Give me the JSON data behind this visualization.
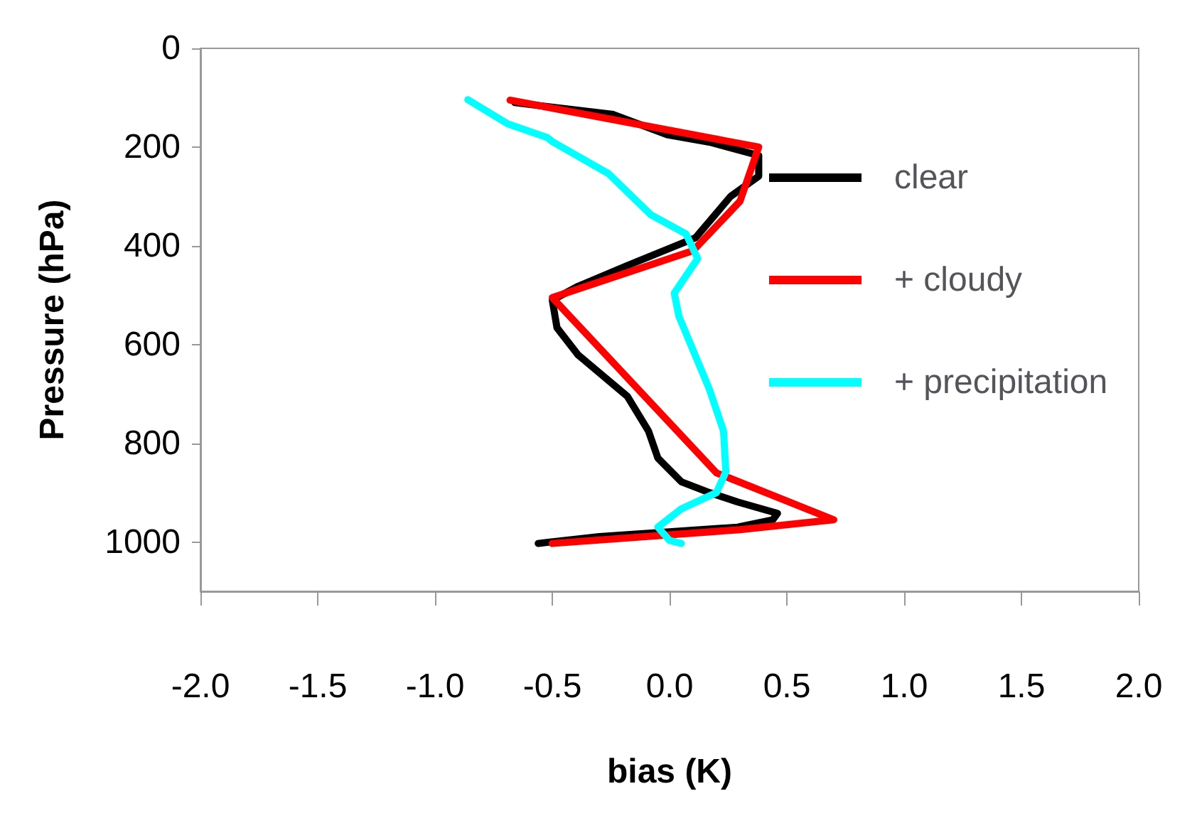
{
  "chart_data": {
    "type": "line",
    "xlabel": "bias (K)",
    "ylabel": "Pressure (hPa)",
    "xlim": [
      -2,
      2
    ],
    "xticks": [
      {
        "value": -2,
        "label": "-2.0"
      },
      {
        "value": -1.5,
        "label": "-1.5"
      },
      {
        "value": -1,
        "label": "-1.0"
      },
      {
        "value": -0.5,
        "label": "-0.5"
      },
      {
        "value": 0,
        "label": "0.0"
      },
      {
        "value": 0.5,
        "label": "0.5"
      },
      {
        "value": 1,
        "label": "1.0"
      },
      {
        "value": 1.5,
        "label": "1.5"
      },
      {
        "value": 2,
        "label": "2.0"
      }
    ],
    "ylim": [
      1100,
      0
    ],
    "yticks": [
      0,
      200,
      400,
      600,
      800,
      1000
    ],
    "grid": false,
    "legend": "right",
    "marker": "none",
    "line_style": "solid",
    "series": [
      {
        "name": "clear",
        "color": "#000000",
        "x": [
          -0.66,
          -0.24,
          -0.01,
          0.17,
          0.38,
          0.38,
          0.26,
          0.11,
          -0.18,
          -0.39,
          -0.5,
          -0.48,
          -0.39,
          -0.18,
          -0.09,
          -0.05,
          0.05,
          0.17,
          0.29,
          0.46,
          0.44,
          0.29,
          -0.3,
          -0.56
        ],
        "values": [
          110,
          134,
          175,
          190,
          217,
          259,
          300,
          384,
          440,
          482,
          510,
          566,
          621,
          705,
          775,
          830,
          878,
          900,
          919,
          942,
          955,
          970,
          989,
          1003
        ]
      },
      {
        "name": "+ cloudy",
        "color": "#ff0000",
        "x": [
          -0.68,
          0.38,
          0.3,
          0.1,
          -0.5,
          0.2,
          0.7,
          0.3,
          -0.5
        ],
        "values": [
          105,
          200,
          310,
          410,
          505,
          860,
          955,
          975,
          1003
        ]
      },
      {
        "name": "+ precipitation",
        "color": "#00ffff",
        "x": [
          -0.86,
          -0.69,
          -0.52,
          -0.5,
          -0.26,
          -0.08,
          0.07,
          0.12,
          0.02,
          0.04,
          0.17,
          0.23,
          0.24,
          0.2,
          0.05,
          -0.05,
          0,
          0.05
        ],
        "values": [
          104,
          153,
          181,
          189,
          254,
          337,
          376,
          426,
          496,
          543,
          691,
          775,
          858,
          900,
          933,
          970,
          997,
          1003
        ]
      }
    ]
  }
}
